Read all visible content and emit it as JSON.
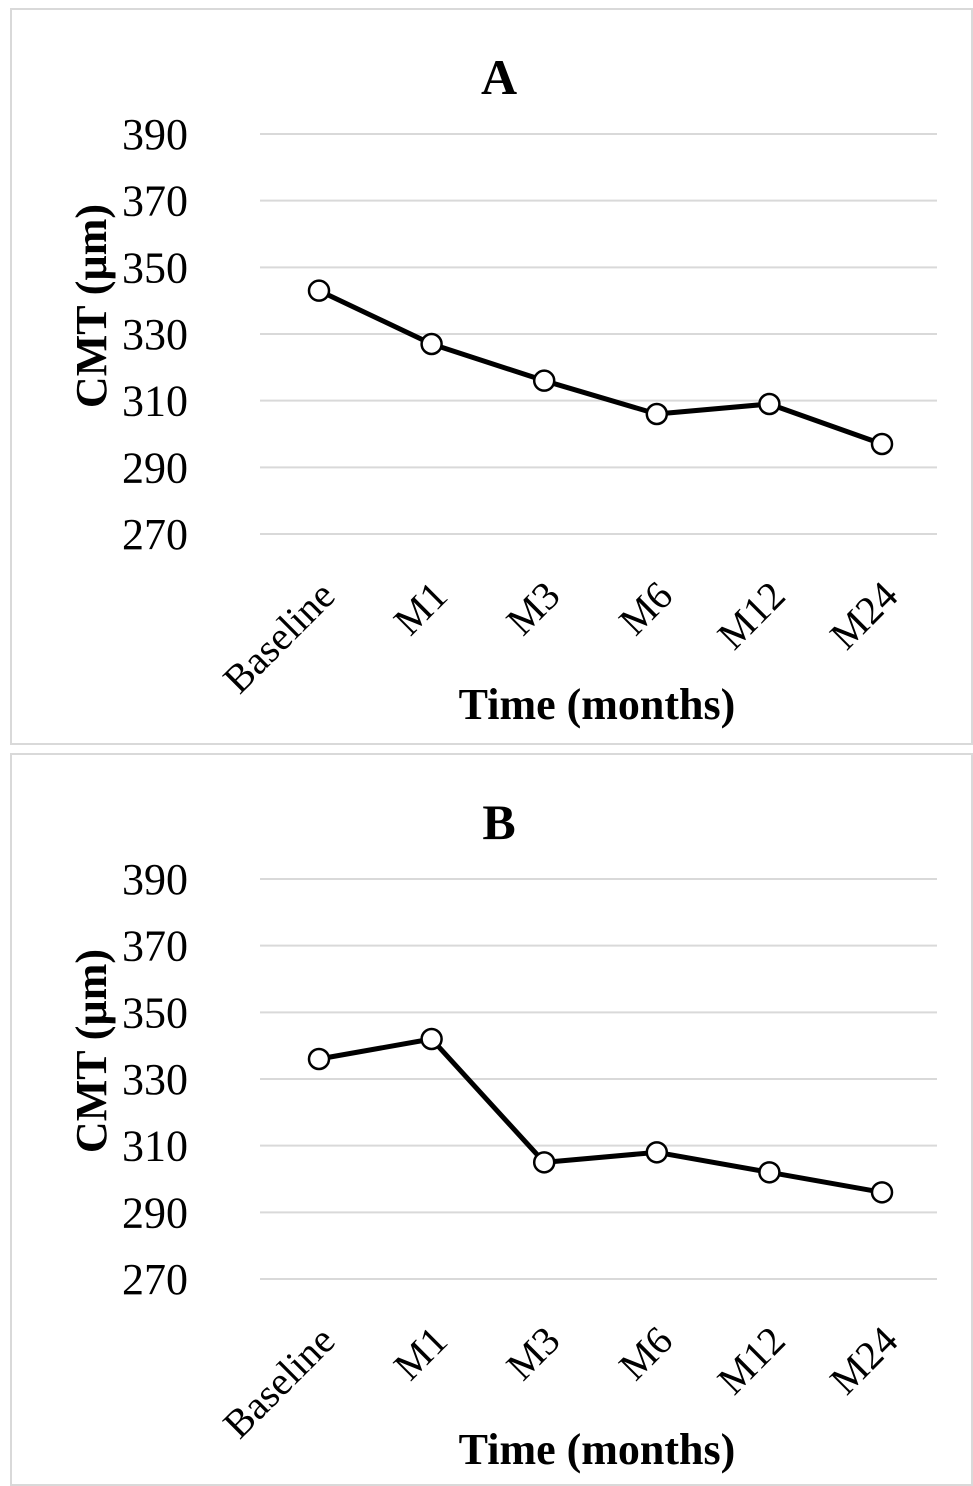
{
  "chart_data": [
    {
      "type": "line",
      "title": "A",
      "xlabel": "Time (months)",
      "ylabel": "CMT (µm)",
      "categories": [
        "Baseline",
        "M1",
        "M3",
        "M6",
        "M12",
        "M24"
      ],
      "values": [
        343,
        327,
        316,
        306,
        309,
        297
      ],
      "ylim": [
        270,
        390
      ],
      "yticks": [
        "390",
        "370",
        "350",
        "330",
        "310",
        "290",
        "270"
      ],
      "grid": true,
      "colors": {
        "line": "#000000",
        "marker_fill": "#ffffff",
        "grid": "#d9d9d9"
      }
    },
    {
      "type": "line",
      "title": "B",
      "xlabel": "Time (months)",
      "ylabel": "CMT (µm)",
      "categories": [
        "Baseline",
        "M1",
        "M3",
        "M6",
        "M12",
        "M24"
      ],
      "values": [
        336,
        342,
        305,
        308,
        302,
        296
      ],
      "ylim": [
        270,
        390
      ],
      "yticks": [
        "390",
        "370",
        "350",
        "330",
        "310",
        "290",
        "270"
      ],
      "grid": true,
      "colors": {
        "line": "#000000",
        "marker_fill": "#ffffff",
        "grid": "#d9d9d9"
      }
    }
  ]
}
